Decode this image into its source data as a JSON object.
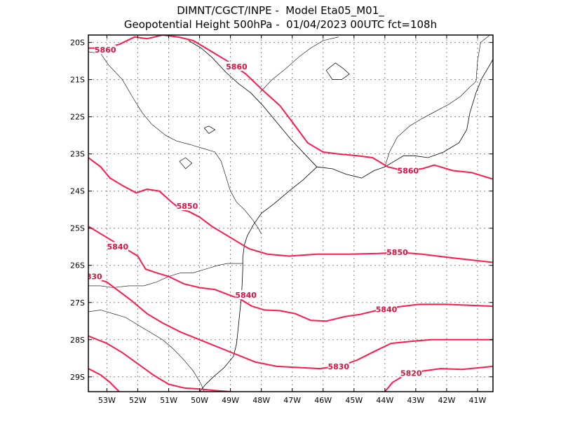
{
  "header": {
    "line1": "DIMNT/CGCT/INPE -  Model Eta05_M01_",
    "line2": "Geopotential Height 500hPa -  01/04/2023 00UTC fct=108h"
  },
  "map": {
    "lon_range": [
      -53.6,
      -40.5
    ],
    "lat_range": [
      -29.4,
      -19.8
    ],
    "x_ticks": [
      "53W",
      "52W",
      "51W",
      "50W",
      "49W",
      "48W",
      "47W",
      "46W",
      "45W",
      "44W",
      "43W",
      "42W",
      "41W"
    ],
    "y_ticks": [
      "20S",
      "21S",
      "22S",
      "23S",
      "24S",
      "25S",
      "26S",
      "27S",
      "28S",
      "29S"
    ]
  },
  "colors": {
    "contour": "#ff1a4b",
    "contour_label": "#e0103f",
    "coast": "#000000",
    "grid": "#888888"
  },
  "contours": [
    {
      "level": 5860,
      "label": "5860",
      "line": [
        [
          -53.6,
          -20.15
        ],
        [
          -53.1,
          -20.15
        ],
        [
          -52.6,
          -20.05
        ],
        [
          -52.1,
          -19.85
        ],
        [
          -51.7,
          -19.9
        ],
        [
          -51.2,
          -19.8
        ],
        [
          -50.7,
          -19.85
        ],
        [
          -50.2,
          -19.95
        ],
        [
          -49.6,
          -20.25
        ],
        [
          -49.0,
          -20.55
        ],
        [
          -48.5,
          -20.85
        ],
        [
          -48.0,
          -21.25
        ],
        [
          -47.4,
          -21.7
        ],
        [
          -46.9,
          -22.25
        ],
        [
          -46.5,
          -22.7
        ],
        [
          -46.0,
          -22.95
        ],
        [
          -45.5,
          -23.0
        ],
        [
          -44.9,
          -23.05
        ],
        [
          -44.4,
          -23.1
        ],
        [
          -43.9,
          -23.35
        ],
        [
          -43.4,
          -23.45
        ],
        [
          -42.8,
          -23.4
        ],
        [
          -42.4,
          -23.3
        ],
        [
          -41.8,
          -23.45
        ],
        [
          -41.2,
          -23.5
        ],
        [
          -40.5,
          -23.68
        ]
      ],
      "labels": [
        [
          -53.05,
          -20.2
        ],
        [
          -48.8,
          -20.65
        ],
        [
          -43.25,
          -23.45
        ]
      ]
    },
    {
      "level": 5850,
      "label": "5850",
      "line": [
        [
          -53.6,
          -23.1
        ],
        [
          -53.2,
          -23.35
        ],
        [
          -52.9,
          -23.65
        ],
        [
          -52.5,
          -23.85
        ],
        [
          -52.05,
          -24.05
        ],
        [
          -51.7,
          -23.95
        ],
        [
          -51.3,
          -24.0
        ],
        [
          -50.9,
          -24.3
        ],
        [
          -50.6,
          -24.5
        ],
        [
          -50.35,
          -24.55
        ],
        [
          -50.0,
          -24.7
        ],
        [
          -49.6,
          -24.95
        ],
        [
          -49.2,
          -25.15
        ],
        [
          -48.8,
          -25.35
        ],
        [
          -48.4,
          -25.55
        ],
        [
          -47.8,
          -25.7
        ],
        [
          -47.1,
          -25.75
        ],
        [
          -46.2,
          -25.7
        ],
        [
          -45.2,
          -25.7
        ],
        [
          -44.2,
          -25.68
        ],
        [
          -43.5,
          -25.65
        ],
        [
          -42.8,
          -25.7
        ],
        [
          -41.8,
          -25.8
        ],
        [
          -40.5,
          -25.92
        ]
      ],
      "labels": [
        [
          -50.4,
          -24.4
        ],
        [
          -43.6,
          -25.65
        ]
      ]
    },
    {
      "level": 5840,
      "label": "5840",
      "line": [
        [
          -53.6,
          -24.95
        ],
        [
          -53.1,
          -25.2
        ],
        [
          -52.5,
          -25.5
        ],
        [
          -52.0,
          -25.75
        ],
        [
          -51.75,
          -26.1
        ],
        [
          -51.4,
          -26.2
        ],
        [
          -51.0,
          -26.3
        ],
        [
          -50.5,
          -26.5
        ],
        [
          -50.0,
          -26.6
        ],
        [
          -49.5,
          -26.65
        ],
        [
          -49.1,
          -26.78
        ],
        [
          -48.7,
          -26.9
        ],
        [
          -48.3,
          -27.1
        ],
        [
          -47.9,
          -27.2
        ],
        [
          -47.4,
          -27.22
        ],
        [
          -46.9,
          -27.3
        ],
        [
          -46.4,
          -27.48
        ],
        [
          -45.9,
          -27.5
        ],
        [
          -45.3,
          -27.38
        ],
        [
          -44.8,
          -27.32
        ],
        [
          -44.2,
          -27.2
        ],
        [
          -43.6,
          -27.12
        ],
        [
          -42.9,
          -27.05
        ],
        [
          -42.0,
          -27.05
        ],
        [
          -40.5,
          -27.1
        ]
      ],
      "labels": [
        [
          -52.65,
          -25.5
        ],
        [
          -48.5,
          -26.8
        ],
        [
          -43.95,
          -27.18
        ]
      ]
    },
    {
      "level": 5830,
      "label": "5830",
      "line": [
        [
          -53.6,
          -26.3
        ],
        [
          -53.0,
          -26.45
        ],
        [
          -52.6,
          -26.7
        ],
        [
          -52.2,
          -26.95
        ],
        [
          -51.7,
          -27.3
        ],
        [
          -51.2,
          -27.55
        ],
        [
          -50.6,
          -27.8
        ],
        [
          -50.0,
          -28.0
        ],
        [
          -49.4,
          -28.2
        ],
        [
          -48.8,
          -28.4
        ],
        [
          -48.2,
          -28.6
        ],
        [
          -47.5,
          -28.72
        ],
        [
          -46.8,
          -28.75
        ],
        [
          -46.1,
          -28.78
        ],
        [
          -45.4,
          -28.7
        ],
        [
          -44.9,
          -28.55
        ],
        [
          -44.3,
          -28.3
        ],
        [
          -43.8,
          -28.1
        ],
        [
          -43.2,
          -28.05
        ],
        [
          -42.5,
          -28.0
        ],
        [
          -41.8,
          -28.0
        ],
        [
          -40.5,
          -28.0
        ]
      ],
      "labels": [
        [
          -53.5,
          -26.3
        ],
        [
          -45.5,
          -28.72
        ]
      ]
    },
    {
      "level": 5820,
      "label": "5820",
      "line": [
        [
          -53.6,
          -27.9
        ],
        [
          -53.0,
          -28.1
        ],
        [
          -52.5,
          -28.35
        ],
        [
          -52.0,
          -28.65
        ],
        [
          -51.5,
          -28.95
        ],
        [
          -51.0,
          -29.2
        ],
        [
          -50.5,
          -29.3
        ],
        [
          -50.0,
          -29.33
        ],
        [
          -49.5,
          -29.37
        ],
        [
          -49.0,
          -29.4
        ]
      ],
      "labels": []
    },
    {
      "level": 5820,
      "label": "5820",
      "line": [
        [
          -53.6,
          -28.78
        ],
        [
          -53.2,
          -28.95
        ],
        [
          -52.9,
          -29.15
        ],
        [
          -52.6,
          -29.4
        ]
      ],
      "labels": []
    },
    {
      "level": 5820,
      "label": "5820",
      "line": [
        [
          -44.0,
          -29.4
        ],
        [
          -43.75,
          -29.15
        ],
        [
          -43.35,
          -28.95
        ],
        [
          -42.8,
          -28.85
        ],
        [
          -42.2,
          -28.78
        ],
        [
          -41.5,
          -28.8
        ],
        [
          -40.5,
          -28.72
        ]
      ],
      "labels": [
        [
          -43.15,
          -28.9
        ]
      ]
    }
  ],
  "coastline": [
    [
      [
        -50.35,
        -19.95
      ],
      [
        -49.95,
        -20.15
      ],
      [
        -49.6,
        -20.4
      ],
      [
        -49.15,
        -20.8
      ],
      [
        -48.75,
        -21.1
      ],
      [
        -48.35,
        -21.35
      ],
      [
        -47.95,
        -21.7
      ],
      [
        -47.5,
        -22.15
      ],
      [
        -47.05,
        -22.6
      ],
      [
        -46.6,
        -23.0
      ],
      [
        -46.2,
        -23.35
      ],
      [
        -45.7,
        -23.4
      ],
      [
        -45.25,
        -23.55
      ],
      [
        -44.75,
        -23.65
      ],
      [
        -44.35,
        -23.45
      ],
      [
        -44.0,
        -23.35
      ],
      [
        -43.7,
        -23.2
      ],
      [
        -43.4,
        -23.05
      ],
      [
        -43.05,
        -23.05
      ],
      [
        -42.6,
        -23.1
      ],
      [
        -42.1,
        -22.95
      ],
      [
        -41.6,
        -22.7
      ],
      [
        -41.35,
        -22.35
      ],
      [
        -41.25,
        -21.9
      ],
      [
        -41.05,
        -21.35
      ],
      [
        -40.85,
        -20.95
      ],
      [
        -40.6,
        -20.6
      ],
      [
        -40.5,
        -20.45
      ]
    ],
    [
      [
        -46.2,
        -23.35
      ],
      [
        -46.65,
        -23.7
      ],
      [
        -47.1,
        -24.0
      ],
      [
        -47.6,
        -24.35
      ],
      [
        -48.0,
        -24.6
      ],
      [
        -48.25,
        -24.9
      ],
      [
        -48.45,
        -25.2
      ],
      [
        -48.55,
        -25.45
      ],
      [
        -48.6,
        -25.8
      ],
      [
        -48.6,
        -26.1
      ],
      [
        -48.62,
        -26.5
      ],
      [
        -48.65,
        -26.9
      ],
      [
        -48.7,
        -27.3
      ],
      [
        -48.75,
        -27.7
      ],
      [
        -48.8,
        -28.1
      ],
      [
        -48.9,
        -28.45
      ],
      [
        -49.2,
        -28.75
      ],
      [
        -49.55,
        -29.0
      ],
      [
        -49.8,
        -29.2
      ],
      [
        -50.0,
        -29.4
      ]
    ]
  ],
  "borders": [
    [
      [
        -53.6,
        -20.25
      ],
      [
        -53.2,
        -20.3
      ],
      [
        -52.95,
        -20.6
      ],
      [
        -52.5,
        -21.0
      ],
      [
        -52.15,
        -21.5
      ],
      [
        -51.85,
        -21.9
      ],
      [
        -51.55,
        -22.2
      ],
      [
        -51.1,
        -22.5
      ],
      [
        -50.75,
        -22.65
      ],
      [
        -50.3,
        -22.75
      ],
      [
        -49.9,
        -22.85
      ],
      [
        -49.5,
        -22.95
      ],
      [
        -49.3,
        -23.2
      ],
      [
        -49.15,
        -23.6
      ],
      [
        -49.0,
        -24.0
      ],
      [
        -48.8,
        -24.3
      ],
      [
        -48.55,
        -24.5
      ],
      [
        -48.3,
        -24.75
      ],
      [
        -48.1,
        -25.0
      ],
      [
        -48.0,
        -25.15
      ]
    ],
    [
      [
        -53.6,
        -26.55
      ],
      [
        -53.2,
        -26.55
      ],
      [
        -52.8,
        -26.6
      ],
      [
        -52.3,
        -26.55
      ],
      [
        -51.8,
        -26.55
      ],
      [
        -51.4,
        -26.45
      ],
      [
        -51.0,
        -26.3
      ],
      [
        -50.6,
        -26.2
      ],
      [
        -50.2,
        -26.2
      ],
      [
        -49.8,
        -26.1
      ],
      [
        -49.4,
        -26.0
      ],
      [
        -49.1,
        -25.95
      ],
      [
        -48.8,
        -25.95
      ],
      [
        -48.6,
        -25.95
      ]
    ],
    [
      [
        -53.6,
        -27.25
      ],
      [
        -53.2,
        -27.2
      ],
      [
        -52.8,
        -27.3
      ],
      [
        -52.4,
        -27.4
      ],
      [
        -52.0,
        -27.6
      ],
      [
        -51.6,
        -27.8
      ],
      [
        -51.2,
        -28.0
      ],
      [
        -50.85,
        -28.25
      ],
      [
        -50.5,
        -28.55
      ],
      [
        -50.2,
        -28.85
      ],
      [
        -49.95,
        -29.2
      ],
      [
        -49.85,
        -29.4
      ]
    ],
    [
      [
        -48.05,
        -21.35
      ],
      [
        -47.65,
        -21.0
      ],
      [
        -47.2,
        -20.7
      ],
      [
        -46.8,
        -20.4
      ],
      [
        -46.4,
        -20.15
      ],
      [
        -46.0,
        -19.95
      ],
      [
        -45.5,
        -19.85
      ]
    ],
    [
      [
        -44.0,
        -23.35
      ],
      [
        -43.85,
        -22.95
      ],
      [
        -43.6,
        -22.55
      ],
      [
        -43.2,
        -22.25
      ],
      [
        -42.8,
        -22.05
      ],
      [
        -42.35,
        -21.85
      ],
      [
        -41.9,
        -21.65
      ],
      [
        -41.55,
        -21.45
      ],
      [
        -41.25,
        -21.2
      ],
      [
        -41.05,
        -21.05
      ]
    ],
    [
      [
        -41.05,
        -21.05
      ],
      [
        -41.0,
        -20.5
      ],
      [
        -40.9,
        -20.0
      ],
      [
        -40.6,
        -19.8
      ]
    ]
  ],
  "lakes": [
    [
      [
        -45.9,
        -20.75
      ],
      [
        -45.6,
        -20.55
      ],
      [
        -45.35,
        -20.7
      ],
      [
        -45.15,
        -20.85
      ],
      [
        -45.4,
        -21.0
      ],
      [
        -45.7,
        -21.0
      ],
      [
        -45.9,
        -20.75
      ]
    ],
    [
      [
        -50.65,
        -23.2
      ],
      [
        -50.45,
        -23.1
      ],
      [
        -50.25,
        -23.25
      ],
      [
        -50.45,
        -23.4
      ],
      [
        -50.65,
        -23.2
      ]
    ],
    [
      [
        -49.85,
        -22.3
      ],
      [
        -49.7,
        -22.25
      ],
      [
        -49.5,
        -22.35
      ],
      [
        -49.7,
        -22.45
      ],
      [
        -49.85,
        -22.3
      ]
    ]
  ]
}
